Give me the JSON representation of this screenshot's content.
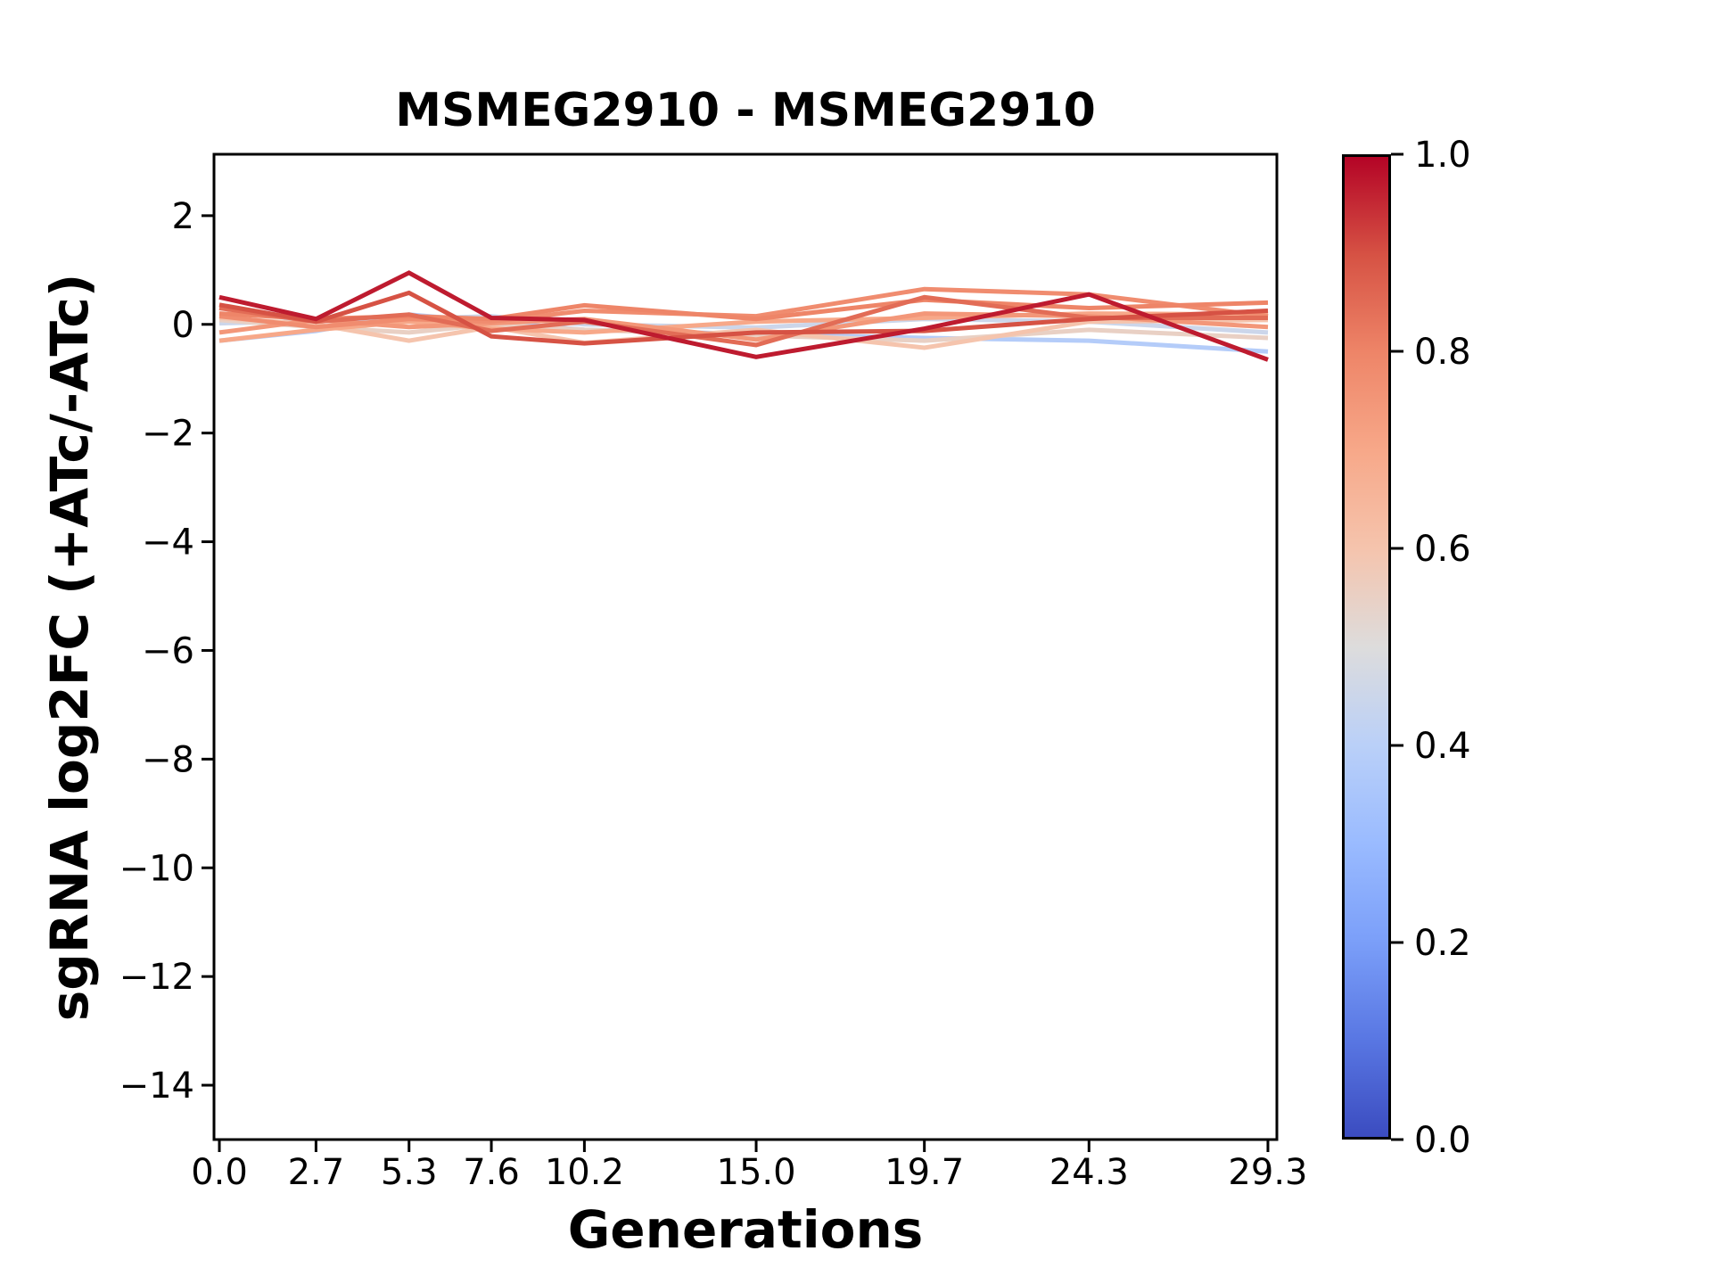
{
  "chart_data": {
    "type": "line",
    "title": "MSMEG2910 - MSMEG2910",
    "xlabel": "Generations",
    "ylabel": "sgRNA log2FC (+ATc/-ATc)",
    "x": [
      0.0,
      2.7,
      5.3,
      7.6,
      10.2,
      15.0,
      19.7,
      24.3,
      29.3
    ],
    "xtick_labels": [
      "0.0",
      "2.7",
      "5.3",
      "7.6",
      "10.2",
      "15.0",
      "19.7",
      "24.3",
      "29.3"
    ],
    "ytick_values": [
      2,
      0,
      -2,
      -4,
      -6,
      -8,
      -10,
      -12,
      -14
    ],
    "ytick_labels": [
      "2",
      "0",
      "−2",
      "−4",
      "−6",
      "−8",
      "−10",
      "−12",
      "−14"
    ],
    "xlim": [
      -0.15,
      29.55
    ],
    "ylim": [
      -15.0,
      3.13
    ],
    "grid": false,
    "legend": "none",
    "line_width": 5,
    "series": [
      {
        "color_value": 0.38,
        "values": [
          -0.3,
          -0.12,
          0.18,
          0.05,
          -0.1,
          -0.18,
          -0.25,
          -0.3,
          -0.5
        ]
      },
      {
        "color_value": 0.45,
        "values": [
          0.02,
          0.06,
          0.1,
          0.15,
          0.0,
          -0.06,
          0.1,
          0.05,
          -0.15
        ]
      },
      {
        "color_value": 0.55,
        "values": [
          0.08,
          -0.05,
          -0.15,
          0.0,
          -0.1,
          -0.2,
          -0.3,
          -0.1,
          -0.25
        ]
      },
      {
        "color_value": 0.6,
        "values": [
          0.12,
          0.0,
          -0.3,
          -0.05,
          -0.34,
          -0.1,
          -0.43,
          0.05,
          0.08
        ]
      },
      {
        "color_value": 0.7,
        "values": [
          -0.3,
          -0.1,
          0.05,
          -0.08,
          -0.15,
          0.05,
          0.12,
          0.2,
          0.18
        ]
      },
      {
        "color_value": 0.75,
        "values": [
          -0.15,
          0.08,
          -0.05,
          0.02,
          0.1,
          -0.28,
          0.2,
          0.15,
          -0.05
        ]
      },
      {
        "color_value": 0.78,
        "values": [
          0.15,
          -0.05,
          0.1,
          0.05,
          0.25,
          0.15,
          0.65,
          0.55,
          0.15
        ]
      },
      {
        "color_value": 0.8,
        "values": [
          0.2,
          0.1,
          0.15,
          0.1,
          0.35,
          0.1,
          0.45,
          0.3,
          0.4
        ]
      },
      {
        "color_value": 0.85,
        "values": [
          0.3,
          0.05,
          0.18,
          -0.12,
          0.05,
          -0.38,
          0.5,
          0.12,
          0.12
        ]
      },
      {
        "color_value": 0.9,
        "values": [
          0.36,
          0.05,
          0.58,
          -0.22,
          -0.35,
          -0.15,
          -0.12,
          0.1,
          0.25
        ]
      },
      {
        "color_value": 0.97,
        "values": [
          0.5,
          0.1,
          0.95,
          0.12,
          0.08,
          -0.6,
          -0.08,
          0.55,
          -0.65
        ]
      }
    ],
    "colorbar": {
      "tick_labels": [
        "1.0",
        "0.8",
        "0.6",
        "0.4",
        "0.2",
        "0.0"
      ],
      "tick_values": [
        1.0,
        0.8,
        0.6,
        0.4,
        0.2,
        0.0
      ],
      "cmap_name": "coolwarm",
      "cmap_stops": [
        {
          "pos": 0.0,
          "hex": "#3b4cc0"
        },
        {
          "pos": 0.1,
          "hex": "#5977e3"
        },
        {
          "pos": 0.2,
          "hex": "#7b9ff9"
        },
        {
          "pos": 0.3,
          "hex": "#9abbff"
        },
        {
          "pos": 0.4,
          "hex": "#bad0f8"
        },
        {
          "pos": 0.5,
          "hex": "#dddcdc"
        },
        {
          "pos": 0.6,
          "hex": "#f5c4ad"
        },
        {
          "pos": 0.7,
          "hex": "#f7a889"
        },
        {
          "pos": 0.8,
          "hex": "#ee8568"
        },
        {
          "pos": 0.9,
          "hex": "#d65244"
        },
        {
          "pos": 1.0,
          "hex": "#b40426"
        }
      ]
    },
    "colors": {
      "axes": "#000000",
      "background": "#ffffff"
    }
  }
}
